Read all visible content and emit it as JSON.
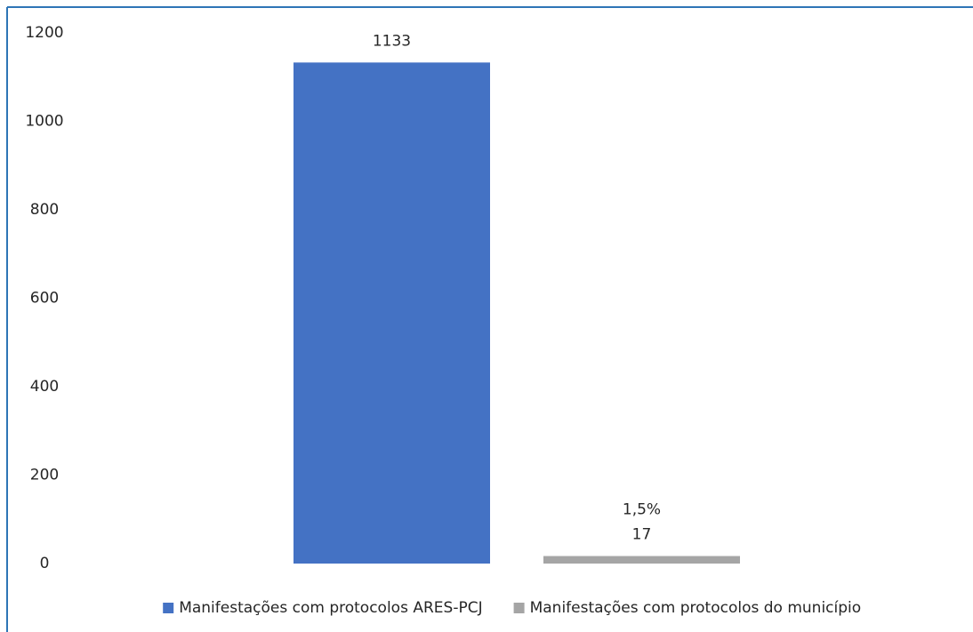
{
  "chart_data": {
    "type": "bar",
    "categories": [
      null
    ],
    "series": [
      {
        "name": "Manifestações com protocolos ARES-PCJ",
        "color": "#4472c4",
        "values": [
          1133
        ]
      },
      {
        "name": "Manifestações com protocolos do município",
        "color": "#a5a5a5",
        "values": [
          17
        ]
      }
    ],
    "annotations": [
      {
        "text": "1,5%",
        "series": 1
      }
    ],
    "ylim": [
      0,
      1200
    ],
    "yticks": [
      0,
      200,
      400,
      600,
      800,
      1000,
      1200
    ],
    "grid": false,
    "legend": "bottom"
  }
}
